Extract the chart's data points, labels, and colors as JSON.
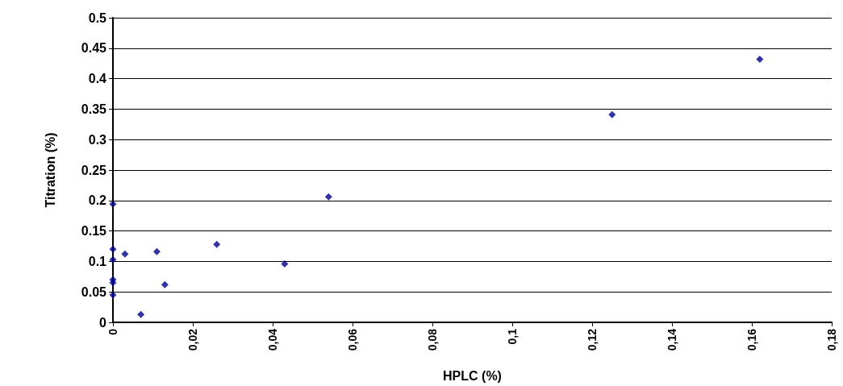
{
  "chart_data": {
    "type": "scatter",
    "xlabel": "HPLC (%)",
    "ylabel": "Titration (%)",
    "x": [
      0,
      0,
      0,
      0,
      0,
      0,
      0.003,
      0.011,
      0.013,
      0.007,
      0.026,
      0.043,
      0.054,
      0.125,
      0.162
    ],
    "series": [
      {
        "color": "#00008b",
        "values": [
          0.194,
          0.12,
          0.103,
          0.07,
          0.065,
          0.045,
          0.112,
          0.116,
          0.062,
          0.013,
          0.128,
          0.096,
          0.206,
          0.341,
          0.432
        ]
      }
    ],
    "xlim": [
      0,
      0.18
    ],
    "xticks": [
      0,
      {
        "value": 0.02,
        "label": "0,02"
      },
      {
        "value": 0.04,
        "label": "0,04"
      },
      {
        "value": 0.06,
        "label": "0,06"
      },
      {
        "value": 0.08,
        "label": "0,08"
      },
      {
        "value": 0.1,
        "label": "0,1"
      },
      {
        "value": 0.12,
        "label": "0,12"
      },
      {
        "value": 0.14,
        "label": "0,14"
      },
      {
        "value": 0.16,
        "label": "0,16"
      },
      {
        "value": 0.18,
        "label": "0,18"
      }
    ],
    "ylim": [
      0,
      0.5
    ],
    "yticks": [
      0,
      0.05,
      0.1,
      0.15,
      0.2,
      0.25,
      0.3,
      0.35,
      0.4,
      0.45,
      0.5
    ],
    "grid": "y",
    "marker": "diamond"
  }
}
